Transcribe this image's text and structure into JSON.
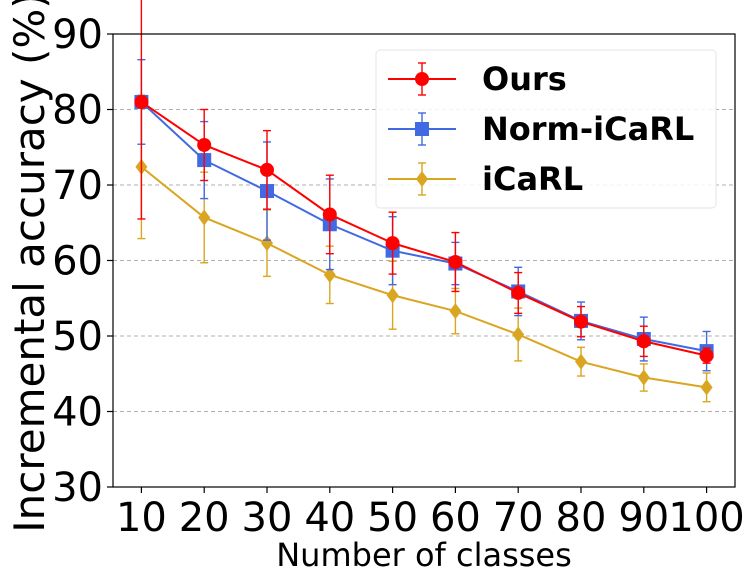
{
  "chart_data": {
    "type": "line",
    "title": "",
    "xlabel": "Number of classes",
    "ylabel": "Incremental accuracy (%)",
    "x": [
      10,
      20,
      30,
      40,
      50,
      60,
      70,
      80,
      90,
      100
    ],
    "xticks": [
      "10",
      "20",
      "30",
      "40",
      "50",
      "60",
      "70",
      "80",
      "90",
      "100"
    ],
    "yticks": [
      "30",
      "40",
      "50",
      "60",
      "70",
      "80",
      "90"
    ],
    "ylim": [
      30,
      90
    ],
    "grid": "horizontal dashed",
    "legend_position": "top-right",
    "series": [
      {
        "name": "Ours",
        "color": "#ff0000",
        "marker": "circle",
        "values": [
          81.0,
          75.3,
          72.0,
          66.1,
          62.3,
          59.8,
          55.7,
          51.9,
          49.3,
          47.4
        ],
        "errors": [
          15.5,
          4.7,
          5.2,
          5.2,
          4.1,
          3.9,
          2.7,
          2.0,
          2.0,
          1.0
        ]
      },
      {
        "name": "Norm-iCaRL",
        "color": "#4169e1",
        "marker": "square",
        "values": [
          81.0,
          73.3,
          69.2,
          64.8,
          61.3,
          59.6,
          55.9,
          52.0,
          49.6,
          48.0
        ],
        "errors": [
          5.6,
          5.1,
          6.5,
          6.0,
          4.5,
          2.8,
          3.2,
          2.5,
          2.9,
          2.6
        ]
      },
      {
        "name": "iCaRL",
        "color": "#daa520",
        "marker": "diamond",
        "values": [
          72.4,
          65.7,
          62.3,
          58.1,
          55.4,
          53.3,
          50.2,
          46.6,
          44.5,
          43.2
        ],
        "errors": [
          9.5,
          6.0,
          4.4,
          3.8,
          4.5,
          3.0,
          3.5,
          1.9,
          1.8,
          1.9
        ]
      }
    ]
  }
}
